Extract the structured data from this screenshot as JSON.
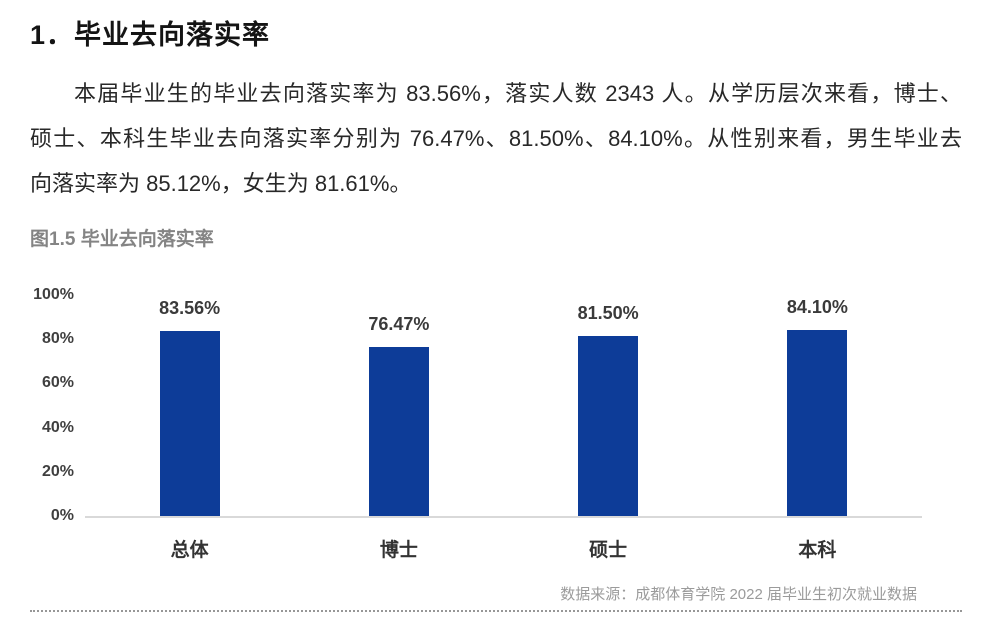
{
  "page": {
    "title": "1．毕业去向落实率",
    "paragraph": {
      "lines": [
        "本届毕业生的毕业去向落实率为 83.56%，落实人数 2343 人。从学历层次来看，博士、",
        "硕士、本科生毕业去向落实率分别为 76.47%、81.50%、84.10%。从性别来看，男生毕业去",
        "向落实率为 85.12%，女生为 81.61%。"
      ]
    },
    "caption": "图1.5 毕业去向落实率",
    "source": "数据来源：成都体育学院 2022 届毕业生初次就业数据"
  },
  "chart_data": {
    "type": "bar",
    "title": "图1.5 毕业去向落实率",
    "categories": [
      "总体",
      "博士",
      "硕士",
      "本科"
    ],
    "values": [
      83.56,
      76.47,
      81.5,
      84.1
    ],
    "value_labels": [
      "83.56%",
      "76.47%",
      "81.50%",
      "84.10%"
    ],
    "xlabel": "",
    "ylabel": "",
    "ylim": [
      0,
      100
    ],
    "yticks": [
      "100%",
      "80%",
      "60%",
      "40%",
      "20%",
      "0%"
    ],
    "grid": false,
    "legend": "none",
    "bar_color": "#0d3c98"
  },
  "colors": {
    "bar": "#0d3c98",
    "axis_line": "#d9d9d9",
    "caption_gray": "#848484",
    "source_gray": "#9b9b9b",
    "text_dark": "#282828"
  }
}
